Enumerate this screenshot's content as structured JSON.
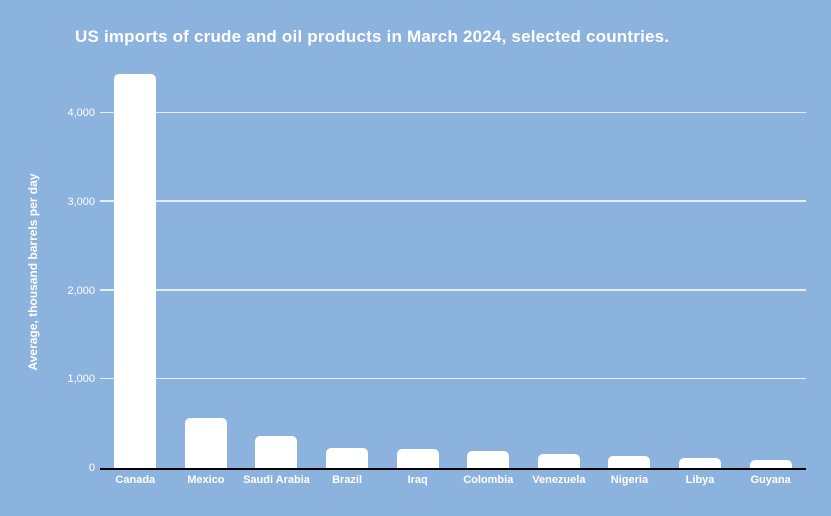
{
  "colors": {
    "background": "#8cb2de",
    "bar": "#ffffff",
    "gridline": "#e8edf3",
    "axis": "#000000",
    "text": "#ffffff"
  },
  "chart_data": {
    "type": "bar",
    "title": "US imports of crude and oil products in March 2024, selected countries.",
    "xlabel": "",
    "ylabel": "Average, thousand barrels per day",
    "categories": [
      "Canada",
      "Mexico",
      "Saudi Arabia",
      "Brazil",
      "Iraq",
      "Colombia",
      "Venezuela",
      "Nigeria",
      "Libya",
      "Guyana"
    ],
    "values": [
      4440,
      565,
      360,
      230,
      210,
      190,
      160,
      130,
      110,
      90
    ],
    "ylim": [
      0,
      4000
    ],
    "yticks": [
      0,
      1000,
      2000,
      3000,
      4000
    ],
    "ytick_labels": [
      "0",
      "1,000",
      "2,000",
      "3,000",
      "4,000"
    ],
    "grid": true,
    "legend": false,
    "bar_color": "#ffffff",
    "orientation": "vertical"
  }
}
